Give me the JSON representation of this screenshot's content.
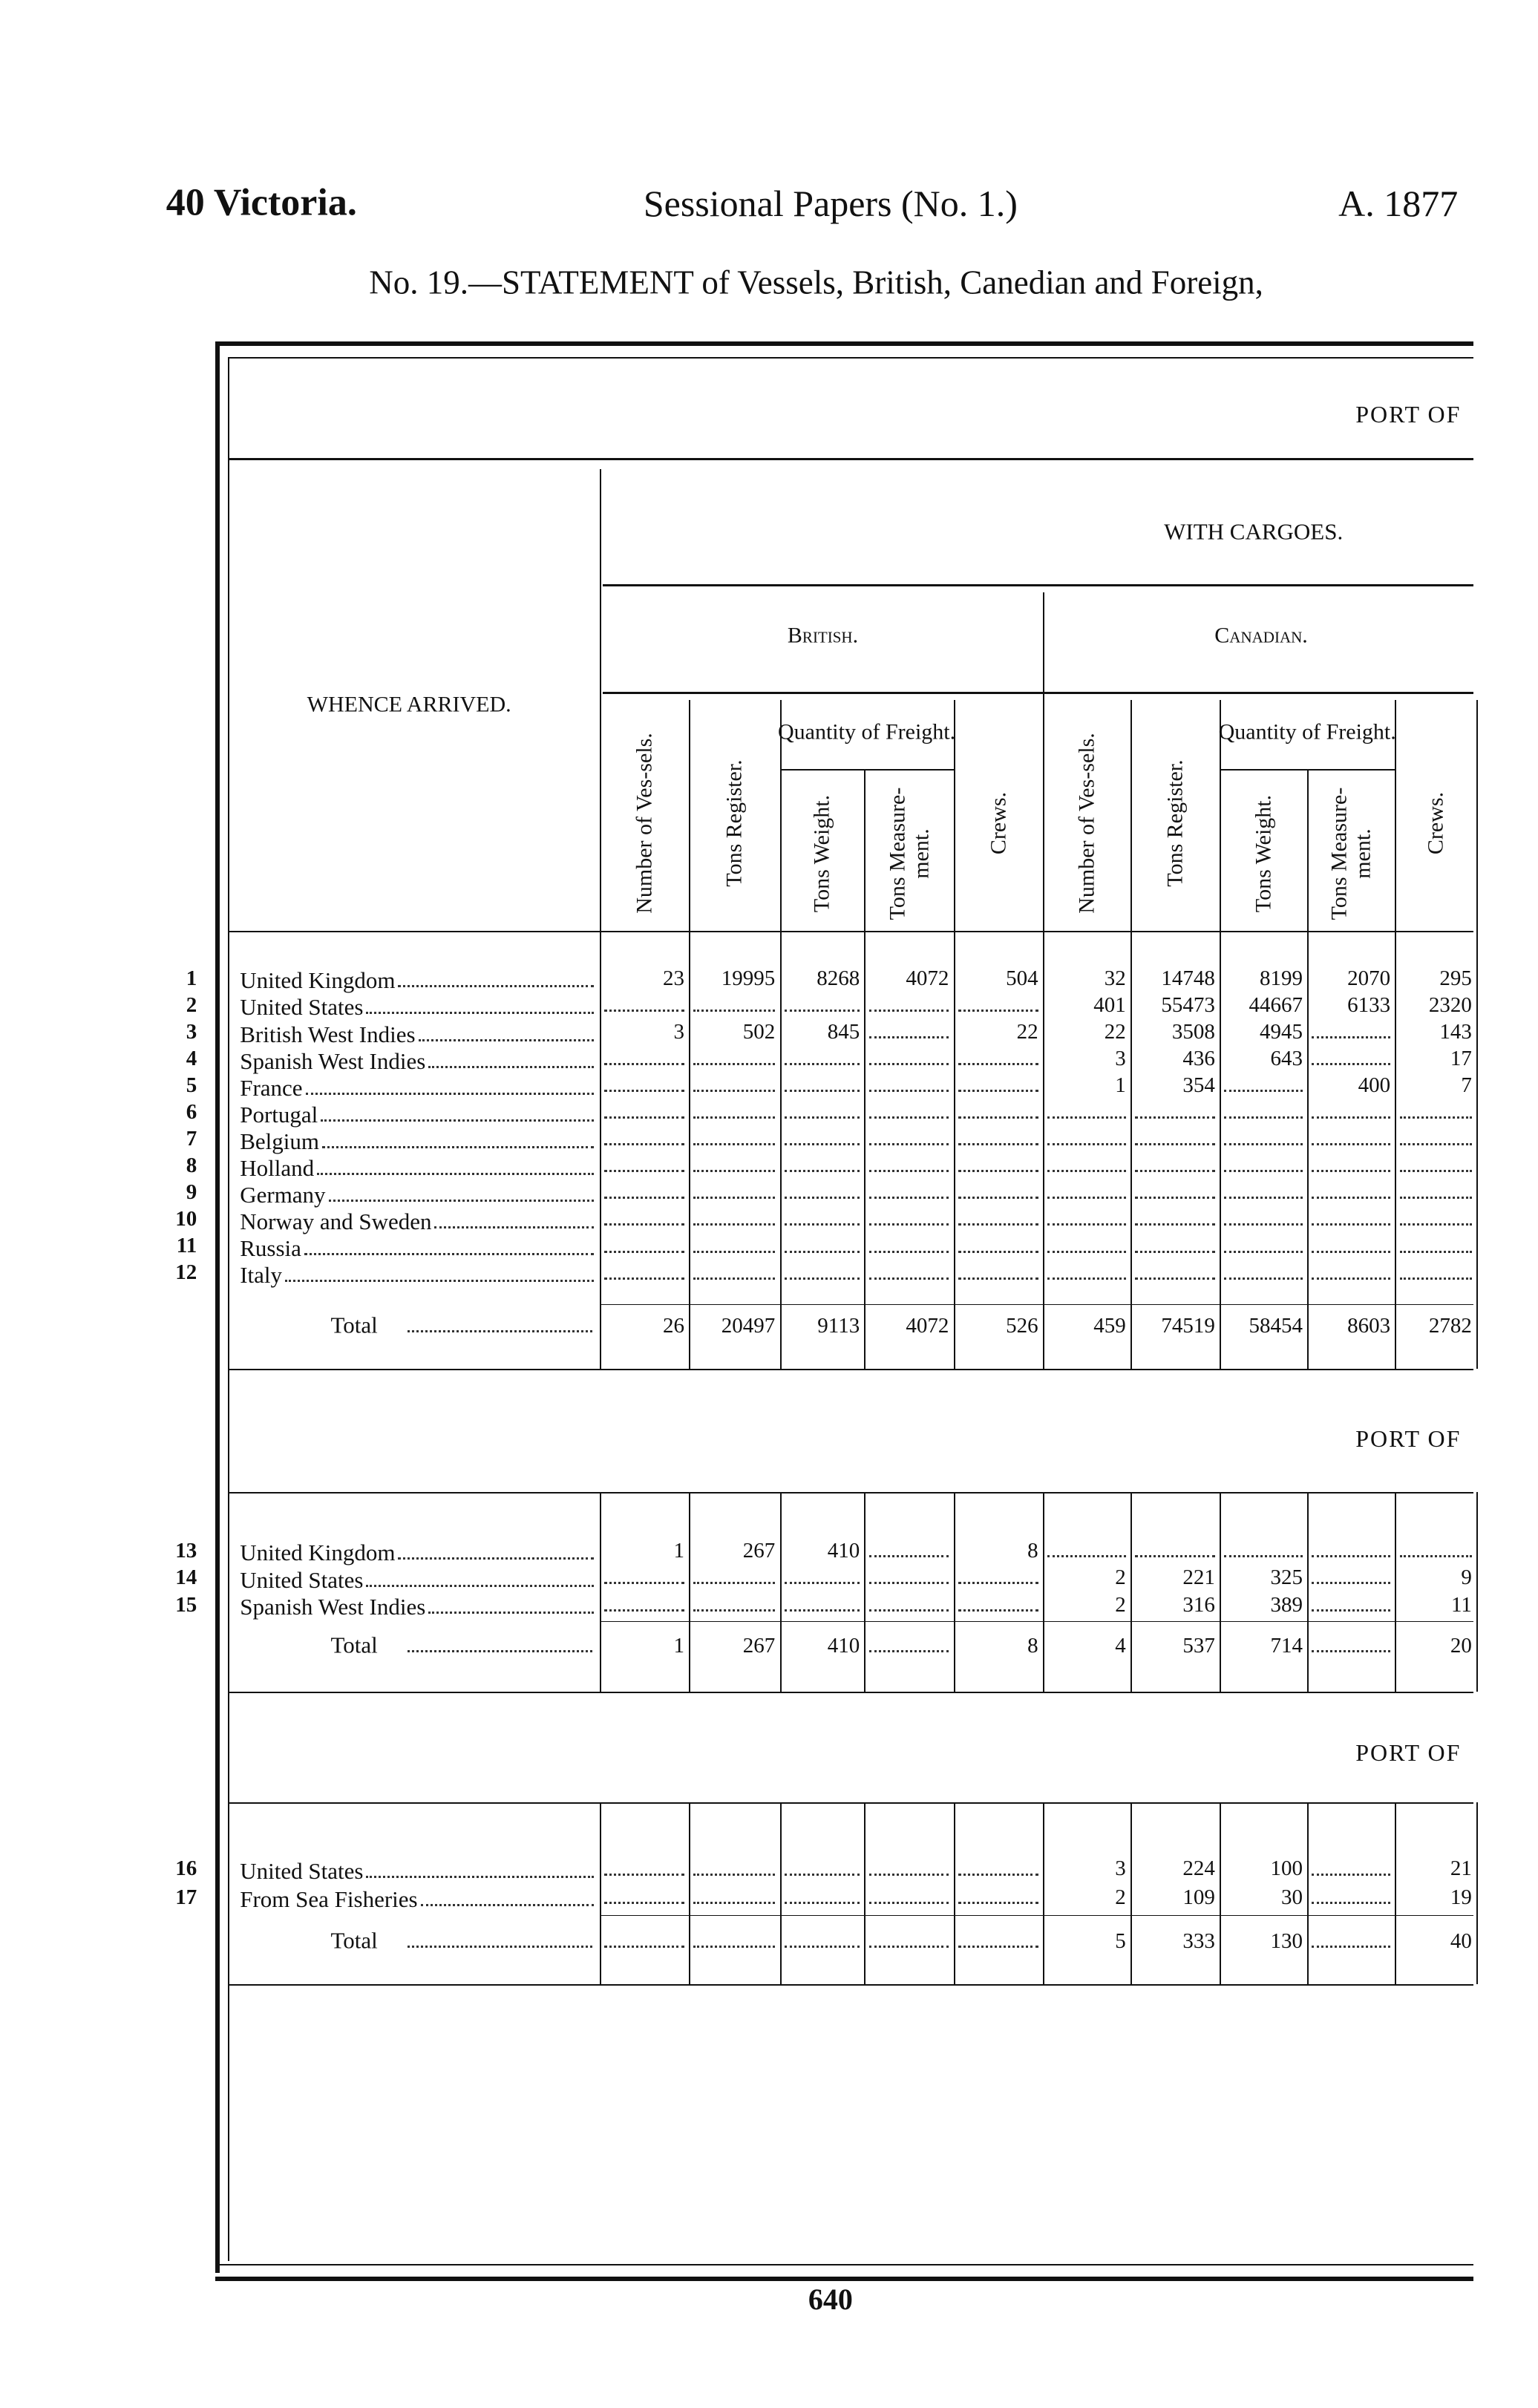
{
  "header": {
    "left": "40 Victoria.",
    "center": "Sessional Papers (No. 1.)",
    "right": "A. 1877"
  },
  "subtitle": "No. 19.—STATEMENT of Vessels, British, Canedian and Foreign,",
  "column_headers": {
    "whence": "WHENCE ARRIVED.",
    "group": "WITH CARGOES.",
    "british": "British.",
    "canadian": "Canadian.",
    "freight": "Quantity of Freight.",
    "vessels": "Number of Ves-sels.",
    "register": "Tons Register.",
    "weight": "Tons Weight.",
    "measurement": "Tons Measure-ment.",
    "crews": "Crews."
  },
  "sections": [
    {
      "port": "PORT OF",
      "rows": [
        {
          "number": "1",
          "name": "United Kingdom",
          "values": [
            23,
            19995,
            8268,
            4072,
            504,
            32,
            14748,
            8199,
            2070,
            295
          ]
        },
        {
          "number": "2",
          "name": "United States",
          "values": [
            null,
            null,
            null,
            null,
            null,
            401,
            55473,
            44667,
            6133,
            2320
          ]
        },
        {
          "number": "3",
          "name": "British West Indies",
          "values": [
            3,
            502,
            845,
            null,
            22,
            22,
            3508,
            4945,
            null,
            143
          ]
        },
        {
          "number": "4",
          "name": "Spanish West Indies",
          "values": [
            null,
            null,
            null,
            null,
            null,
            3,
            436,
            643,
            null,
            17
          ]
        },
        {
          "number": "5",
          "name": "France",
          "values": [
            null,
            null,
            null,
            null,
            null,
            1,
            354,
            null,
            400,
            7
          ]
        },
        {
          "number": "6",
          "name": "Portugal",
          "values": [
            null,
            null,
            null,
            null,
            null,
            null,
            null,
            null,
            null,
            null
          ]
        },
        {
          "number": "7",
          "name": "Belgium",
          "values": [
            null,
            null,
            null,
            null,
            null,
            null,
            null,
            null,
            null,
            null
          ]
        },
        {
          "number": "8",
          "name": "Holland",
          "values": [
            null,
            null,
            null,
            null,
            null,
            null,
            null,
            null,
            null,
            null
          ]
        },
        {
          "number": "9",
          "name": "Germany",
          "values": [
            null,
            null,
            null,
            null,
            null,
            null,
            null,
            null,
            null,
            null
          ]
        },
        {
          "number": "10",
          "name": "Norway and Sweden",
          "values": [
            null,
            null,
            null,
            null,
            null,
            null,
            null,
            null,
            null,
            null
          ]
        },
        {
          "number": "11",
          "name": "Russia",
          "values": [
            null,
            null,
            null,
            null,
            null,
            null,
            null,
            null,
            null,
            null
          ]
        },
        {
          "number": "12",
          "name": "Italy",
          "values": [
            null,
            null,
            null,
            null,
            null,
            null,
            null,
            null,
            null,
            null
          ]
        }
      ],
      "total": {
        "label": "Total",
        "values": [
          26,
          20497,
          9113,
          4072,
          526,
          459,
          74519,
          58454,
          8603,
          2782
        ]
      }
    },
    {
      "port": "PORT OF",
      "rows": [
        {
          "number": "13",
          "name": "United Kingdom",
          "values": [
            1,
            267,
            410,
            null,
            8,
            null,
            null,
            null,
            null,
            null
          ]
        },
        {
          "number": "14",
          "name": "United States",
          "values": [
            null,
            null,
            null,
            null,
            null,
            2,
            221,
            325,
            null,
            9
          ]
        },
        {
          "number": "15",
          "name": "Spanish West Indies",
          "values": [
            null,
            null,
            null,
            null,
            null,
            2,
            316,
            389,
            null,
            11
          ]
        }
      ],
      "total": {
        "label": "Total",
        "values": [
          1,
          267,
          410,
          null,
          8,
          4,
          537,
          714,
          null,
          20
        ]
      }
    },
    {
      "port": "PORT OF",
      "rows": [
        {
          "number": "16",
          "name": "United States",
          "values": [
            null,
            null,
            null,
            null,
            null,
            3,
            224,
            100,
            null,
            21
          ]
        },
        {
          "number": "17",
          "name": "From Sea Fisheries",
          "values": [
            null,
            null,
            null,
            null,
            null,
            2,
            109,
            30,
            null,
            19
          ]
        }
      ],
      "total": {
        "label": "Total",
        "values": [
          null,
          null,
          null,
          null,
          null,
          5,
          333,
          130,
          null,
          40
        ]
      }
    }
  ],
  "footer": {
    "page": "640"
  }
}
